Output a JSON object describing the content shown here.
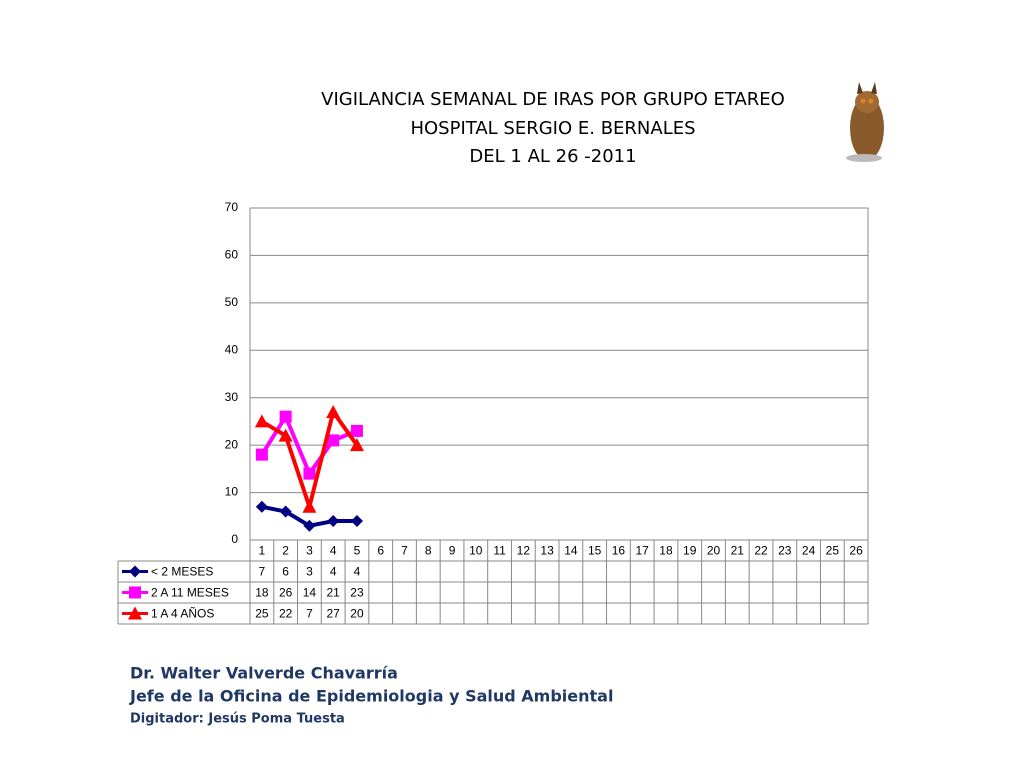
{
  "chart_data": {
    "type": "line",
    "title": [
      "VIGILANCIA SEMANAL DE IRAS POR GRUPO ETAREO",
      "HOSPITAL SERGIO E. BERNALES",
      "DEL 1 AL 26 -2011"
    ],
    "categories": [
      "1",
      "2",
      "3",
      "4",
      "5",
      "6",
      "7",
      "8",
      "9",
      "10",
      "11",
      "12",
      "13",
      "14",
      "15",
      "16",
      "17",
      "18",
      "19",
      "20",
      "21",
      "22",
      "23",
      "24",
      "25",
      "26"
    ],
    "series": [
      {
        "name": "< 2 MESES",
        "color": "#000080",
        "marker": "diamond",
        "values": [
          7,
          6,
          3,
          4,
          4,
          null,
          null,
          null,
          null,
          null,
          null,
          null,
          null,
          null,
          null,
          null,
          null,
          null,
          null,
          null,
          null,
          null,
          null,
          null,
          null,
          null
        ]
      },
      {
        "name": "2 A 11 MESES",
        "color": "#ff00ff",
        "marker": "square",
        "values": [
          18,
          26,
          14,
          21,
          23,
          null,
          null,
          null,
          null,
          null,
          null,
          null,
          null,
          null,
          null,
          null,
          null,
          null,
          null,
          null,
          null,
          null,
          null,
          null,
          null,
          null
        ]
      },
      {
        "name": "1 A 4 AÑOS",
        "color": "#ff0000",
        "marker": "triangle",
        "values": [
          25,
          22,
          7,
          27,
          20,
          null,
          null,
          null,
          null,
          null,
          null,
          null,
          null,
          null,
          null,
          null,
          null,
          null,
          null,
          null,
          null,
          null,
          null,
          null,
          null,
          null
        ]
      }
    ],
    "ylim": [
      0,
      70
    ],
    "yticks": [
      0,
      10,
      20,
      30,
      40,
      50,
      60,
      70
    ],
    "grid": true
  },
  "footer": [
    "Dr.  Walter Valverde Chavarría",
    "Jefe de la Oficina de Epidemiologia y  Salud Ambiental",
    "Digitador: Jesús Poma Tuesta"
  ]
}
